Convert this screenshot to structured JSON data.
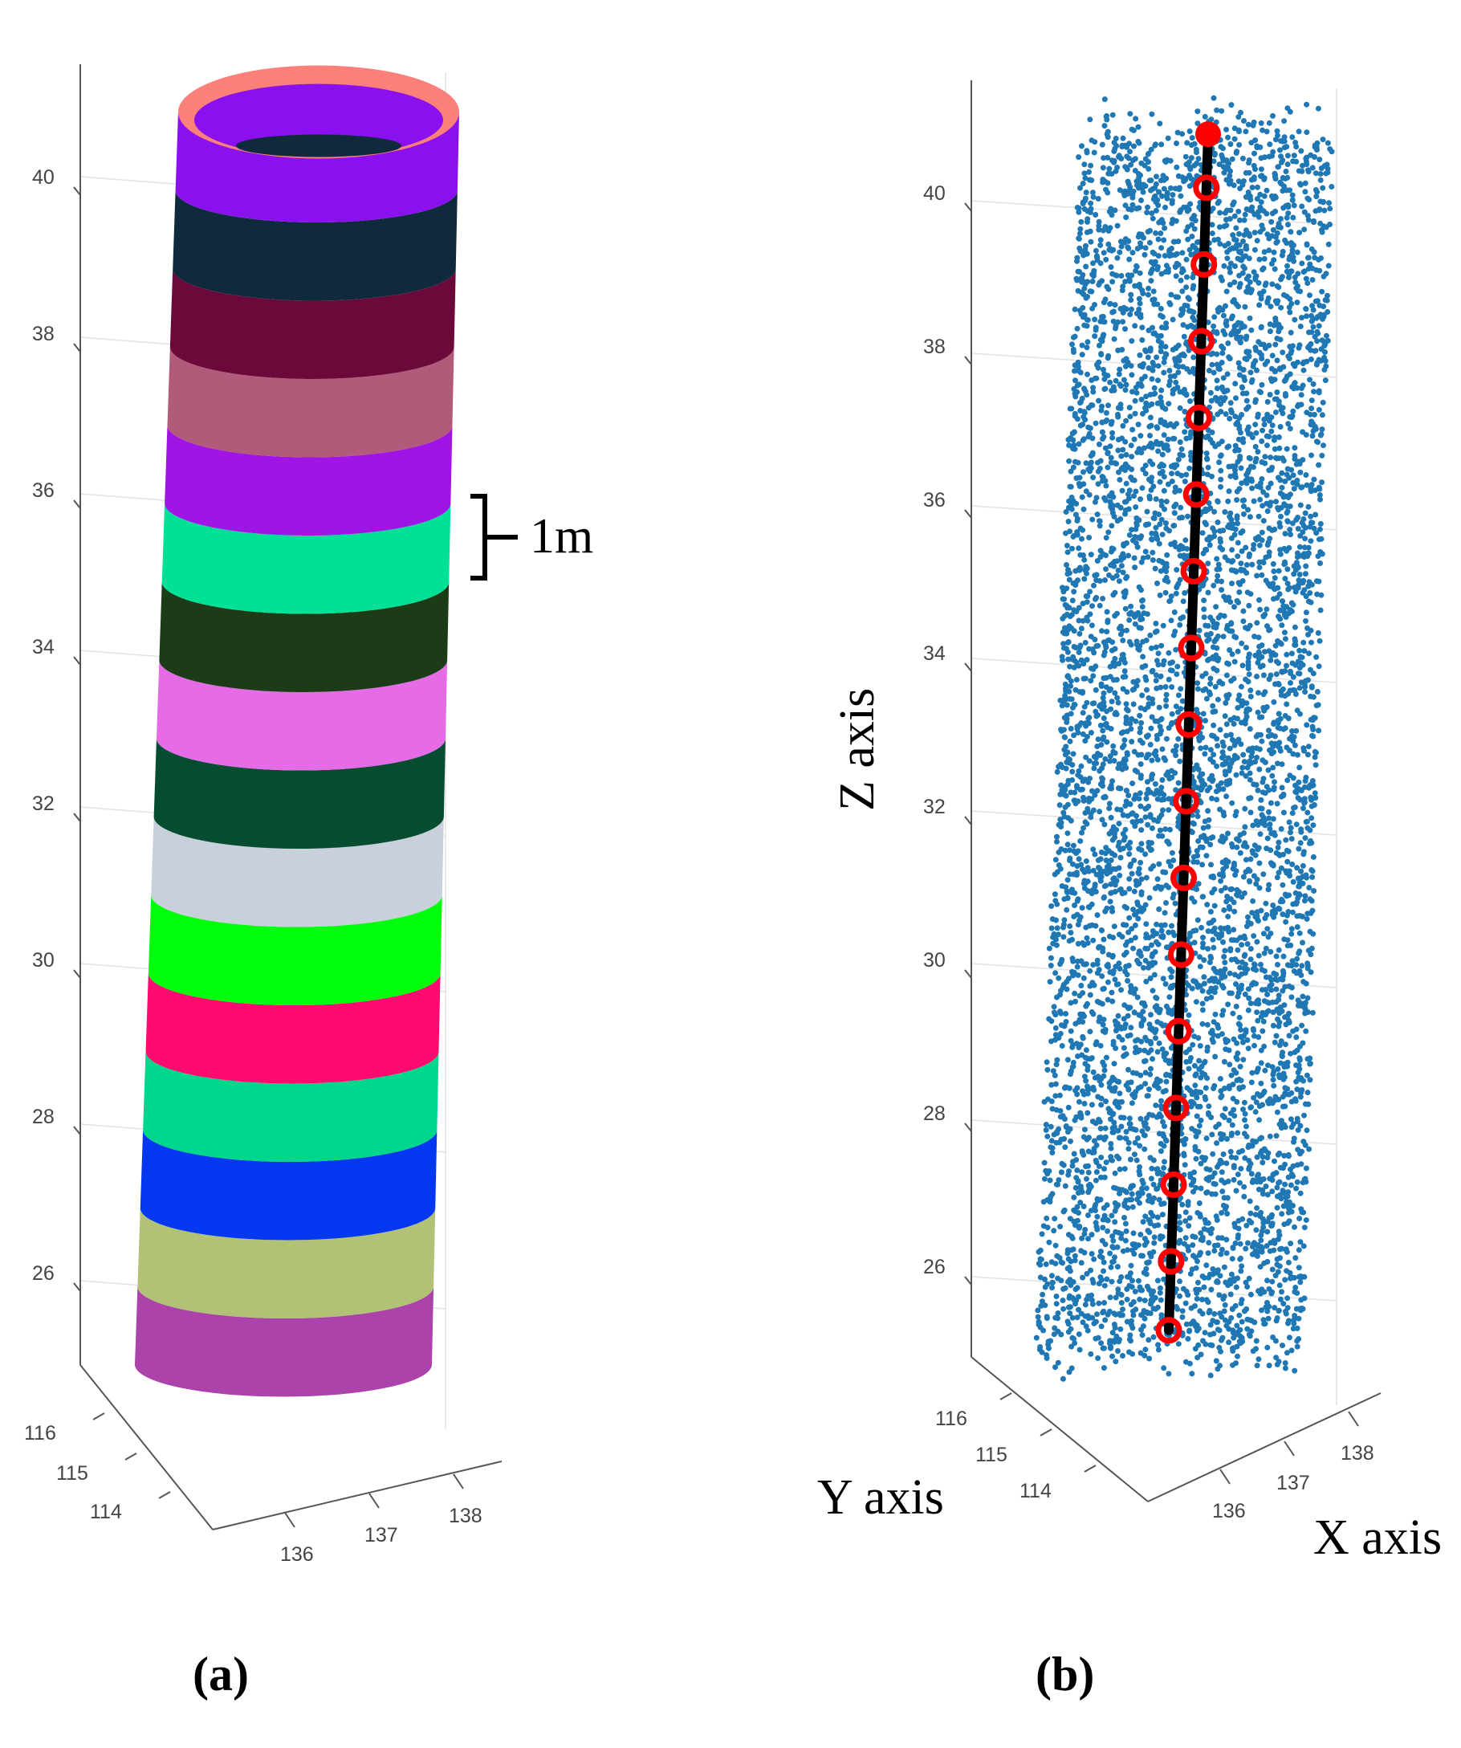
{
  "chart_data": [
    {
      "panel": "(a)",
      "type": "scatter",
      "view": "3d",
      "z_ticks": [
        "26",
        "28",
        "30",
        "32",
        "34",
        "36",
        "38",
        "40"
      ],
      "y_ticks": [
        "116",
        "115",
        "114"
      ],
      "x_ticks": [
        "136",
        "137",
        "138"
      ],
      "zlim": [
        25,
        41
      ],
      "annotation": "1m",
      "segment_colors": [
        "#ab43ab",
        "#b1c277",
        "#0437f0",
        "#00d68c",
        "#ff0a6e",
        "#00ff0a",
        "#c8d0dc",
        "#064c30",
        "#e66be6",
        "#1c3c18",
        "#00e096",
        "#a014e6",
        "#b25a7a",
        "#6b0a3a",
        "#0e2a3c",
        "#8a10f0"
      ],
      "top_ring_color": "#fa8079",
      "grid": true
    },
    {
      "panel": "(b)",
      "type": "scatter",
      "view": "3d",
      "xlabel": "X axis",
      "ylabel": "Y axis",
      "zlabel": "Z axis",
      "z_ticks": [
        "26",
        "28",
        "30",
        "32",
        "34",
        "36",
        "38",
        "40"
      ],
      "y_ticks": [
        "116",
        "115",
        "114"
      ],
      "x_ticks": [
        "136",
        "137",
        "138"
      ],
      "zlim": [
        25,
        41
      ],
      "points_color": "#1f77b4",
      "axis_line_color": "#000000",
      "axis_points_color": "#ff0000",
      "center_z": [
        25.3,
        26.2,
        27.2,
        28.2,
        29.2,
        30.2,
        31.2,
        32.2,
        33.2,
        34.2,
        35.2,
        36.2,
        37.2,
        38.2,
        39.2,
        40.2,
        40.9
      ],
      "grid": true
    }
  ]
}
